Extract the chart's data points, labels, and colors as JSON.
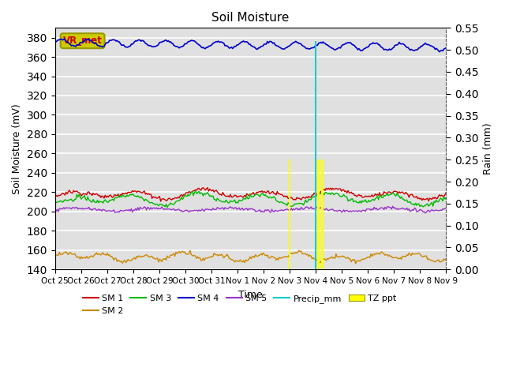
{
  "title": "Soil Moisture",
  "xlabel": "Time",
  "ylabel_left": "Soil Moisture (mV)",
  "ylabel_right": "Rain (mm)",
  "ylim_left": [
    140,
    390
  ],
  "ylim_right": [
    0.0,
    0.55
  ],
  "yticks_left": [
    140,
    160,
    180,
    200,
    220,
    240,
    260,
    280,
    300,
    320,
    340,
    360,
    380
  ],
  "yticks_right": [
    0.0,
    0.05,
    0.1,
    0.15,
    0.2,
    0.25,
    0.3,
    0.35,
    0.4,
    0.45,
    0.5,
    0.55
  ],
  "sm1_color": "#cc0000",
  "sm2_color": "#cc8800",
  "sm3_color": "#00bb00",
  "sm4_color": "#0000cc",
  "sm5_color": "#9933cc",
  "precip_color": "#00cccc",
  "tz_ppt_color": "#ffff00",
  "annotation_label": "VR_met",
  "annotation_color": "#cc0000",
  "annotation_bg": "#cccc00",
  "background_color": "#e0e0e0",
  "grid_color": "#ffffff",
  "xtick_labels": [
    "Oct 25",
    "Oct 26",
    "Oct 27",
    "Oct 28",
    "Oct 29",
    "Oct 30",
    "Oct 31",
    "Nov 1",
    "Nov 2",
    "Nov 3",
    "Nov 4",
    "Nov 5",
    "Nov 6",
    "Nov 7",
    "Nov 8",
    "Nov 9"
  ],
  "n_days": 15,
  "n_points": 360
}
